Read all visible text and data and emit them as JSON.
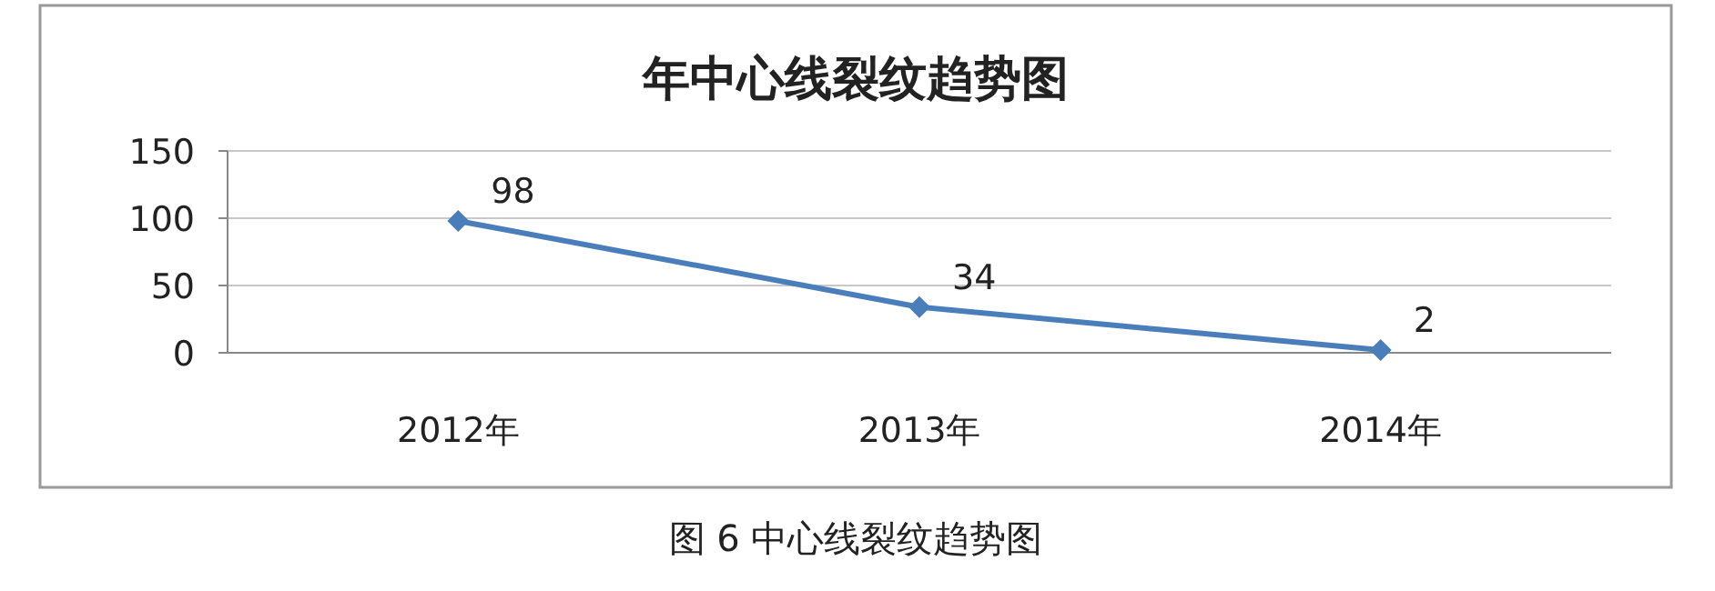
{
  "chart_data": {
    "type": "line",
    "title": "年中心线裂纹趋势图",
    "categories": [
      "2012年",
      "2013年",
      "2014年"
    ],
    "values": [
      98,
      34,
      2
    ],
    "color": "#4a7ebb",
    "ylim": [
      0,
      150
    ],
    "yticks": [
      0,
      50,
      100,
      150
    ],
    "grid": "y",
    "marker": "diamond",
    "data_labels": true,
    "annotations": [
      "图 6   中心线裂纹趋势图"
    ]
  }
}
